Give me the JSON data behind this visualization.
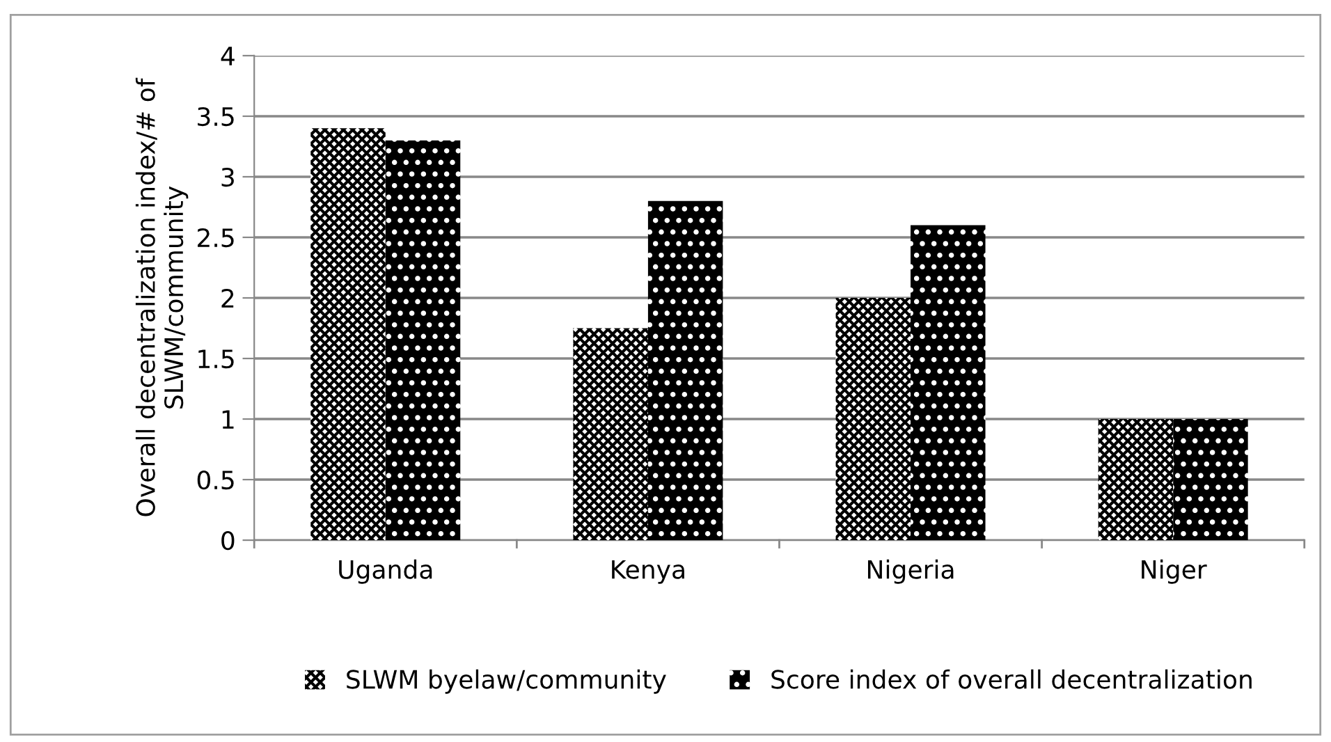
{
  "chart_data": {
    "type": "bar",
    "ylabel": "Overall decentralization index/# of\nSLWM/community",
    "categories": [
      "Uganda",
      "Kenya",
      "Nigeria",
      "Niger"
    ],
    "series": [
      {
        "name": "SLWM byelaw/community",
        "color": "#000000",
        "values": [
          3.4,
          1.75,
          2.0,
          1.0
        ]
      },
      {
        "name": "Score index of overall decentralization",
        "color": "#000000",
        "values": [
          3.3,
          2.8,
          2.6,
          1.0
        ]
      }
    ],
    "ylim": [
      0,
      4
    ],
    "yticks": [
      0,
      0.5,
      1,
      1.5,
      2,
      2.5,
      3,
      3.5,
      4
    ],
    "grid": "y",
    "legend": "bottom"
  }
}
